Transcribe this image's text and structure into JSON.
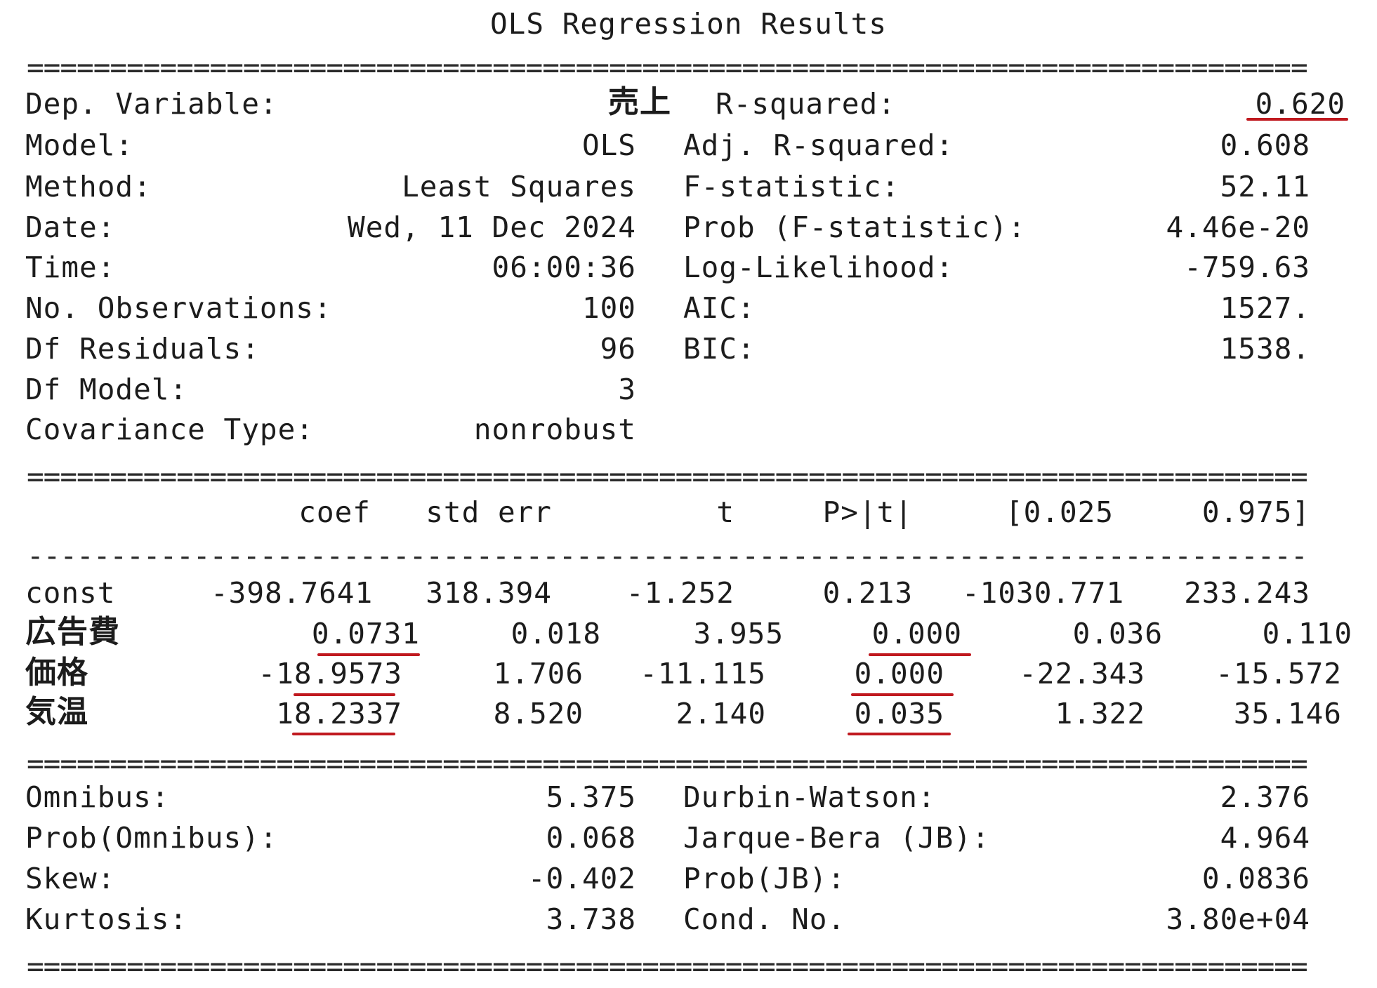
{
  "title": "OLS Regression Results",
  "rules": {
    "double": "================================================================================",
    "single": "--------------------------------------------------------------------------------"
  },
  "summary": {
    "left": [
      {
        "label": "Dep. Variable:",
        "value": "売上"
      },
      {
        "label": "Model:",
        "value": "OLS"
      },
      {
        "label": "Method:",
        "value": "Least Squares"
      },
      {
        "label": "Date:",
        "value": "Wed, 11 Dec 2024"
      },
      {
        "label": "Time:",
        "value": "06:00:36"
      },
      {
        "label": "No. Observations:",
        "value": "100"
      },
      {
        "label": "Df Residuals:",
        "value": "96"
      },
      {
        "label": "Df Model:",
        "value": "3"
      },
      {
        "label": "Covariance Type:",
        "value": "nonrobust"
      }
    ],
    "right": [
      {
        "label": "R-squared:",
        "value": "0.620"
      },
      {
        "label": "Adj. R-squared:",
        "value": "0.608"
      },
      {
        "label": "F-statistic:",
        "value": "52.11"
      },
      {
        "label": "Prob (F-statistic):",
        "value": "4.46e-20"
      },
      {
        "label": "Log-Likelihood:",
        "value": "-759.63"
      },
      {
        "label": "AIC:",
        "value": "1527."
      },
      {
        "label": "BIC:",
        "value": "1538."
      }
    ]
  },
  "coef_table": {
    "headers": [
      "coef",
      "std err",
      "t",
      "P>|t|",
      "[0.025",
      "0.975]"
    ],
    "rows": [
      {
        "name": "const",
        "values": [
          "-398.7641",
          "318.394",
          "-1.252",
          "0.213",
          "-1030.771",
          "233.243"
        ]
      },
      {
        "name": "広告費",
        "values": [
          "0.0731",
          "0.018",
          "3.955",
          "0.000",
          "0.036",
          "0.110"
        ]
      },
      {
        "name": "価格",
        "values": [
          "-18.9573",
          "1.706",
          "-11.115",
          "0.000",
          "-22.343",
          "-15.572"
        ]
      },
      {
        "name": "気温",
        "values": [
          "18.2337",
          "8.520",
          "2.140",
          "0.035",
          "1.322",
          "35.146"
        ]
      }
    ]
  },
  "diagnostics": {
    "left": [
      {
        "label": "Omnibus:",
        "value": "5.375"
      },
      {
        "label": "Prob(Omnibus):",
        "value": "0.068"
      },
      {
        "label": "Skew:",
        "value": "-0.402"
      },
      {
        "label": "Kurtosis:",
        "value": "3.738"
      }
    ],
    "right": [
      {
        "label": "Durbin-Watson:",
        "value": "2.376"
      },
      {
        "label": "Jarque-Bera (JB):",
        "value": "4.964"
      },
      {
        "label": "Prob(JB):",
        "value": "0.0836"
      },
      {
        "label": "Cond. No.",
        "value": "3.80e+04"
      }
    ]
  },
  "highlight_color": "#c0191f"
}
